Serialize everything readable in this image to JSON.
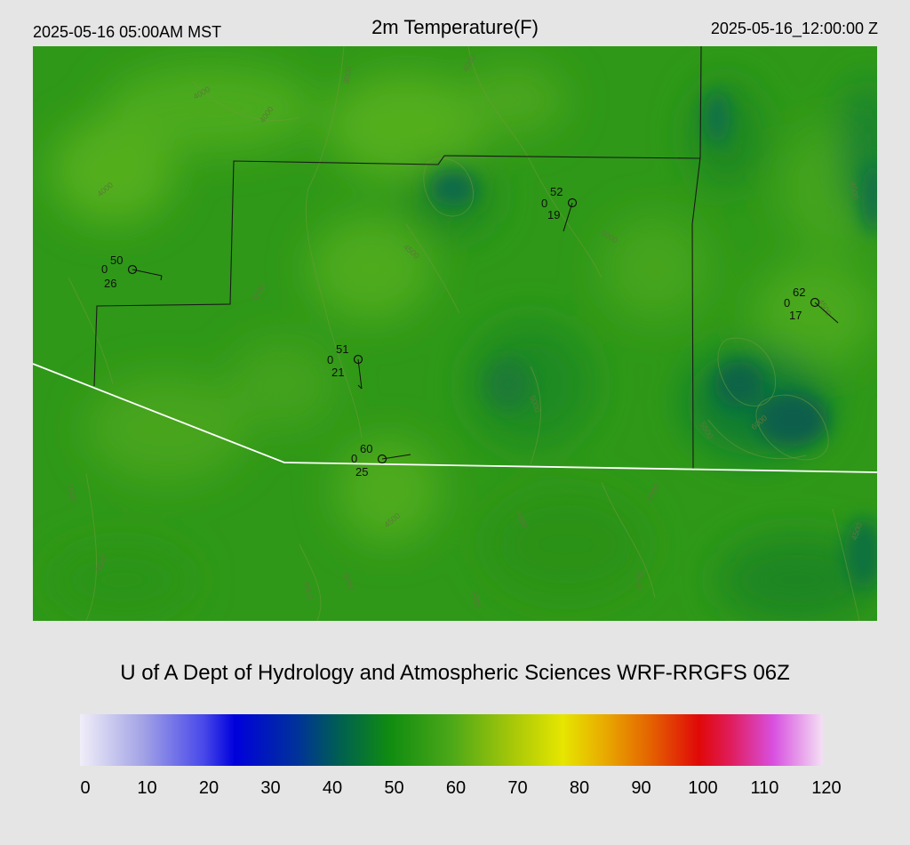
{
  "header": {
    "local_time": "2025-05-16 05:00AM MST",
    "title": "2m Temperature(F)",
    "utc_time": "2025-05-16_12:00:00 Z"
  },
  "credit": "U of A Dept of Hydrology and Atmospheric Sciences WRF-RRGFS 06Z",
  "colorbar": {
    "ticks": [
      "0",
      "10",
      "20",
      "30",
      "40",
      "50",
      "60",
      "70",
      "80",
      "90",
      "100",
      "110",
      "120"
    ],
    "range": [
      0,
      120
    ],
    "stops": [
      {
        "v": 0,
        "c": "#f0eef8"
      },
      {
        "v": 10,
        "c": "#a4a4e6"
      },
      {
        "v": 20,
        "c": "#4848ea"
      },
      {
        "v": 25,
        "c": "#0000dc"
      },
      {
        "v": 35,
        "c": "#00329a"
      },
      {
        "v": 42,
        "c": "#006050"
      },
      {
        "v": 50,
        "c": "#108c10"
      },
      {
        "v": 60,
        "c": "#4ca818"
      },
      {
        "v": 70,
        "c": "#a8c808"
      },
      {
        "v": 78,
        "c": "#e6e600"
      },
      {
        "v": 85,
        "c": "#e8a800"
      },
      {
        "v": 92,
        "c": "#e46400"
      },
      {
        "v": 100,
        "c": "#e00808"
      },
      {
        "v": 105,
        "c": "#e01c5a"
      },
      {
        "v": 112,
        "c": "#d850e0"
      },
      {
        "v": 120,
        "c": "#f4e0f4"
      }
    ]
  },
  "colors": {
    "map_base": "#2f9818",
    "border": "#1a1a1a",
    "boundary_white": "#ffffff",
    "contour": "#6f9b3a"
  },
  "contour_labels": [
    "3000",
    "4000",
    "5000",
    "6000",
    "4500",
    "5500"
  ],
  "stations": [
    {
      "temp": "50",
      "wind": "0",
      "dew": "26"
    },
    {
      "temp": "52",
      "wind": "0",
      "dew": "19"
    },
    {
      "temp": "62",
      "wind": "0",
      "dew": "17"
    },
    {
      "temp": "51",
      "wind": "0",
      "dew": "21"
    },
    {
      "temp": "60",
      "wind": "0",
      "dew": "25"
    }
  ]
}
